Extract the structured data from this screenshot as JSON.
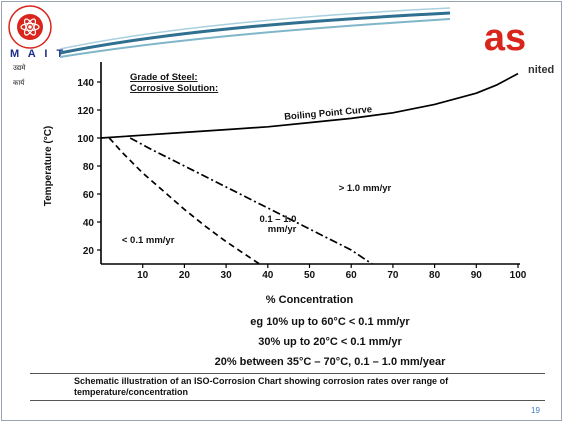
{
  "header": {
    "logo_ring_text": "MAHARAJA AGRASEN INSTITUTE OF TECHNOLOGY",
    "logo_short": "M A I T",
    "hindi_line_1": "उद्यमे",
    "hindi_line_2": "कार्य",
    "right_logo_text": "as",
    "right_partial_text": "nited"
  },
  "colors": {
    "logo_red": "#d9261c",
    "navy": "#1b2f8a",
    "swoosh": "#2f6f8f",
    "page_number": "#3b7fc4"
  },
  "chart_data": {
    "type": "line",
    "title_lines": [
      "Grade of Steel:",
      "Corrosive Solution:"
    ],
    "xlabel": "% Concentration",
    "ylabel": "Temperature (°C)",
    "xlim": [
      0,
      100
    ],
    "ylim": [
      10,
      150
    ],
    "x_ticks": [
      10,
      20,
      30,
      40,
      50,
      60,
      70,
      80,
      90,
      100
    ],
    "y_ticks": [
      20,
      40,
      60,
      80,
      100,
      120,
      140
    ],
    "series": [
      {
        "name": "Boiling Point Curve",
        "style": "solid",
        "x": [
          0,
          10,
          20,
          30,
          40,
          50,
          60,
          70,
          80,
          90,
          95,
          100
        ],
        "y": [
          100,
          102,
          104,
          106,
          108,
          111,
          114,
          118,
          124,
          132,
          138,
          146
        ]
      },
      {
        "name": "",
        "style": "dashed",
        "x": [
          2,
          5,
          10,
          15,
          20,
          25,
          30,
          35,
          38
        ],
        "y": [
          100,
          90,
          75,
          62,
          49,
          37,
          26,
          16,
          10
        ]
      },
      {
        "name": "",
        "style": "dashdot",
        "x": [
          7,
          12,
          20,
          30,
          40,
          50,
          60,
          65
        ],
        "y": [
          100,
          92,
          80,
          65,
          50,
          35,
          20,
          10
        ]
      }
    ],
    "annotations": [
      {
        "text": "Boiling Point Curve",
        "x": 44,
        "y": 113,
        "rotate": -5
      },
      {
        "text": "> 1.0 mm/yr",
        "x": 57,
        "y": 62
      },
      {
        "text": "0.1 – 1.0",
        "x": 38,
        "y": 40
      },
      {
        "text": "mm/yr",
        "x": 40,
        "y": 33
      },
      {
        "text": "< 0.1 mm/yr",
        "x": 5,
        "y": 25
      }
    ]
  },
  "captions": [
    "eg 10% up to 60°C < 0.1 mm/yr",
    "30% up to 20°C < 0.1 mm/yr",
    "20% between 35°C – 70°C, 0.1 – 1.0 mm/year"
  ],
  "note": "Schematic illustration of an ISO-Corrosion Chart showing corrosion rates over range of temperature/concentration",
  "page_number": "19"
}
